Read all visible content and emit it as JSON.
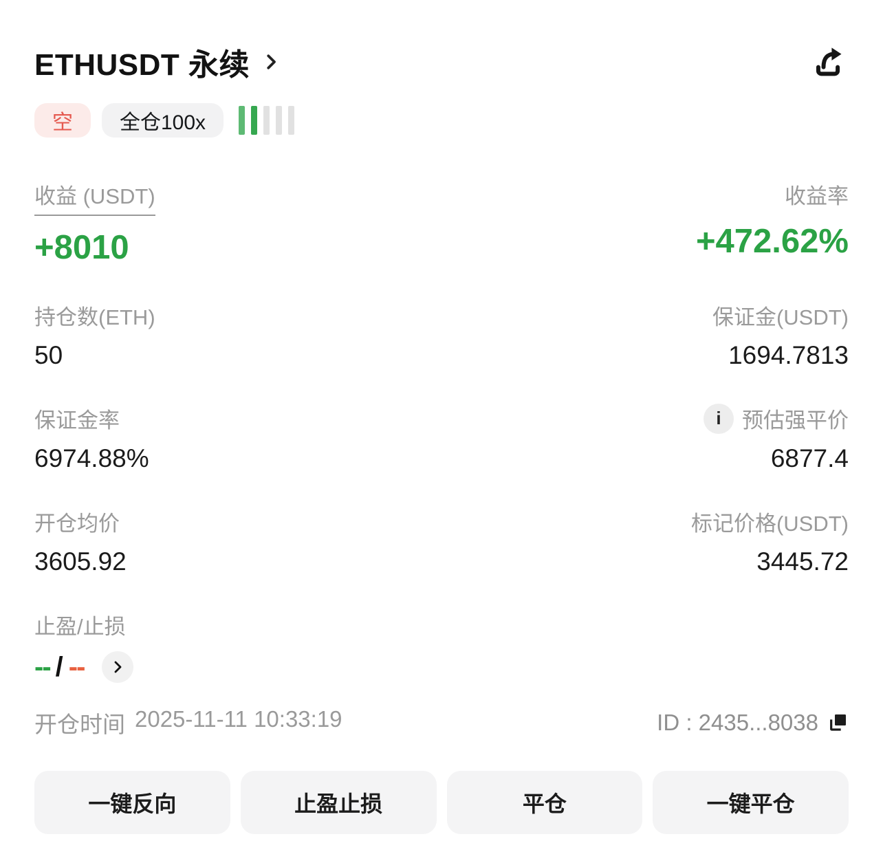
{
  "header": {
    "title": "ETHUSDT 永续"
  },
  "badges": {
    "side": "空",
    "margin_mode": "全仓100x",
    "risk_bars": {
      "active": 2,
      "total": 5
    }
  },
  "stats": {
    "pnl": {
      "label": "收益 (USDT)",
      "value": "+8010"
    },
    "roe": {
      "label": "收益率",
      "value": "+472.62%"
    },
    "position_size": {
      "label": "持仓数(ETH)",
      "value": "50"
    },
    "margin": {
      "label": "保证金(USDT)",
      "value": "1694.7813"
    },
    "margin_ratio": {
      "label": "保证金率",
      "value": "6974.88%"
    },
    "liq_price": {
      "label": "预估强平价",
      "value": "6877.4",
      "info_glyph": "i"
    },
    "entry_price": {
      "label": "开仓均价",
      "value": "3605.92"
    },
    "mark_price": {
      "label": "标记价格(USDT)",
      "value": "3445.72"
    },
    "tpsl": {
      "label": "止盈/止损",
      "take_profit": "--",
      "separator": "/",
      "stop_loss": "--"
    }
  },
  "footer": {
    "open_time_label": "开仓时间",
    "open_time": "2025-11-11 10:33:19",
    "position_id": "ID : 2435...8038"
  },
  "actions": {
    "reverse": "一键反向",
    "tpsl": "止盈止损",
    "close": "平仓",
    "close_all": "一键平仓"
  },
  "colors": {
    "profit_green": "#2ba245",
    "risk_bar_green": "#36a850",
    "short_badge_red": "#e5594f",
    "short_badge_bg": "#fcebe9",
    "stop_loss_orange": "#e8603f",
    "label_gray": "#9a9a9a",
    "button_bg": "#f4f4f5"
  }
}
